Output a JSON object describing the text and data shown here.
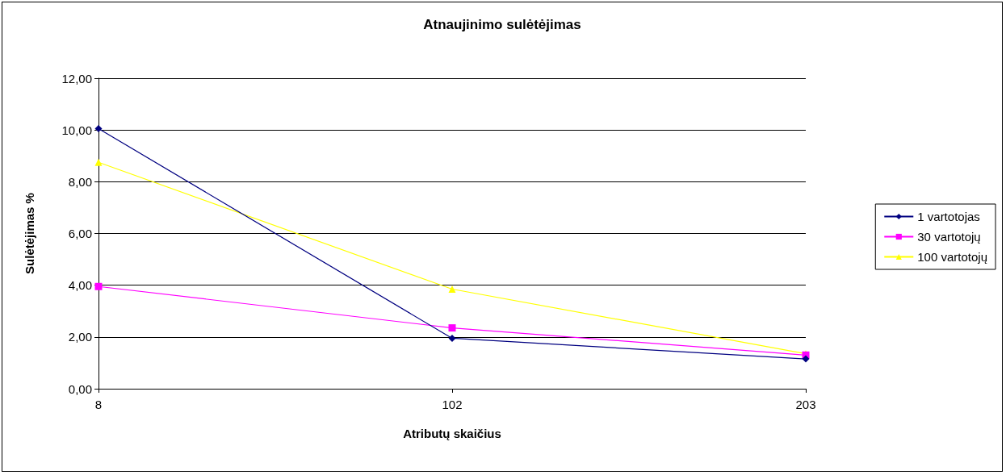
{
  "chart_data": {
    "type": "line",
    "title": "Atnaujinimo sulėtėjimas",
    "xlabel": "Atributų skaičius",
    "ylabel": "Sulėtėjimas %",
    "categories": [
      "8",
      "102",
      "203"
    ],
    "series": [
      {
        "name": "1 vartotojas",
        "color": "#000080",
        "marker": "diamond",
        "values": [
          10.05,
          1.95,
          1.15
        ]
      },
      {
        "name": "30 vartotojų",
        "color": "#ff00ff",
        "marker": "square",
        "values": [
          3.95,
          2.35,
          1.3
        ]
      },
      {
        "name": "100 vartotojų",
        "color": "#ffff00",
        "marker": "triangle",
        "values": [
          8.75,
          3.85,
          1.35
        ]
      }
    ],
    "ylim": [
      0,
      12
    ],
    "yticks": [
      {
        "value": 0,
        "label": "0,00"
      },
      {
        "value": 2,
        "label": "2,00"
      },
      {
        "value": 4,
        "label": "4,00"
      },
      {
        "value": 6,
        "label": "6,00"
      },
      {
        "value": 8,
        "label": "8,00"
      },
      {
        "value": 10,
        "label": "10,00"
      },
      {
        "value": 12,
        "label": "12,00"
      }
    ],
    "grid": "y",
    "legend": "right",
    "line_style": "solid"
  }
}
